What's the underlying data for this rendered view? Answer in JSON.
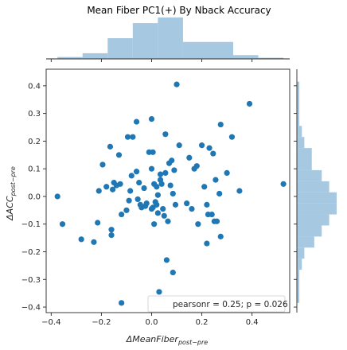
{
  "chart_data": {
    "type": "scatter",
    "title": "Mean Fiber PC1(+) By Nback Accuracy",
    "xlabel_main": "ΔMeanFiber",
    "xlabel_sub": "post−pre",
    "ylabel_main": "ΔACC",
    "ylabel_sub": "post−pre",
    "xlim": [
      -0.42,
      0.55
    ],
    "ylim": [
      -0.42,
      0.46
    ],
    "xticks": [
      -0.4,
      -0.2,
      0.0,
      0.2,
      0.4
    ],
    "yticks": [
      -0.4,
      -0.3,
      -0.2,
      -0.1,
      0.0,
      0.1,
      0.2,
      0.3,
      0.4
    ],
    "xtick_labels": [
      "−0.4",
      "−0.2",
      "0.0",
      "0.2",
      "0.4"
    ],
    "ytick_labels": [
      "−0.4",
      "−0.3",
      "−0.2",
      "−0.1",
      "0.0",
      "0.1",
      "0.2",
      "0.3",
      "0.4"
    ],
    "grid": false,
    "legend_text": "pearsonr = 0.25; p = 0.026",
    "legend_position": "lower-right",
    "point_color": "#1f77b4",
    "hist_color": "#a6c8e0",
    "points": [
      [
        -0.375,
        0.0
      ],
      [
        -0.355,
        -0.1
      ],
      [
        -0.28,
        -0.155
      ],
      [
        -0.23,
        -0.165
      ],
      [
        -0.215,
        -0.095
      ],
      [
        -0.21,
        0.02
      ],
      [
        -0.195,
        0.115
      ],
      [
        -0.18,
        0.035
      ],
      [
        -0.165,
        0.18
      ],
      [
        -0.16,
        -0.12
      ],
      [
        -0.16,
        -0.14
      ],
      [
        -0.155,
        0.025
      ],
      [
        -0.15,
        0.05
      ],
      [
        -0.14,
        0.04
      ],
      [
        -0.13,
        0.15
      ],
      [
        -0.125,
        0.045
      ],
      [
        -0.12,
        -0.065
      ],
      [
        -0.12,
        -0.385
      ],
      [
        -0.1,
        -0.05
      ],
      [
        -0.095,
        0.215
      ],
      [
        -0.09,
        -0.015
      ],
      [
        -0.085,
        0.02
      ],
      [
        -0.08,
        0.075
      ],
      [
        -0.075,
        0.215
      ],
      [
        -0.06,
        0.09
      ],
      [
        -0.06,
        0.27
      ],
      [
        -0.055,
        -0.01
      ],
      [
        -0.05,
        0.05
      ],
      [
        -0.045,
        -0.03
      ],
      [
        -0.04,
        -0.04
      ],
      [
        -0.03,
        0.03
      ],
      [
        -0.025,
        -0.035
      ],
      [
        -0.02,
        -0.025
      ],
      [
        -0.01,
        0.16
      ],
      [
        0.0,
        0.1
      ],
      [
        0.005,
        0.16
      ],
      [
        0.0,
        0.28
      ],
      [
        0.0,
        -0.045
      ],
      [
        0.005,
        -0.04
      ],
      [
        0.01,
        0.045
      ],
      [
        0.01,
        -0.1
      ],
      [
        0.015,
        -0.02
      ],
      [
        0.02,
        -0.03
      ],
      [
        0.02,
        0.035
      ],
      [
        0.025,
        0.005
      ],
      [
        0.025,
        -0.06
      ],
      [
        0.03,
        -0.345
      ],
      [
        0.035,
        0.06
      ],
      [
        0.035,
        0.08
      ],
      [
        0.04,
        0.045
      ],
      [
        0.045,
        -0.045
      ],
      [
        0.05,
        -0.07
      ],
      [
        0.055,
        0.225
      ],
      [
        0.055,
        0.085
      ],
      [
        0.06,
        -0.23
      ],
      [
        0.065,
        -0.09
      ],
      [
        0.07,
        0.12
      ],
      [
        0.075,
        0.04
      ],
      [
        0.08,
        0.13
      ],
      [
        0.085,
        -0.275
      ],
      [
        0.085,
        0.01
      ],
      [
        0.09,
        0.095
      ],
      [
        0.095,
        -0.03
      ],
      [
        0.1,
        0.405
      ],
      [
        0.11,
        0.185
      ],
      [
        0.14,
        -0.025
      ],
      [
        0.15,
        0.14
      ],
      [
        0.16,
        -0.045
      ],
      [
        0.17,
        0.1
      ],
      [
        0.18,
        0.11
      ],
      [
        0.185,
        -0.1
      ],
      [
        0.2,
        0.185
      ],
      [
        0.21,
        0.035
      ],
      [
        0.22,
        -0.03
      ],
      [
        0.22,
        -0.17
      ],
      [
        0.225,
        -0.065
      ],
      [
        0.23,
        0.175
      ],
      [
        0.24,
        -0.065
      ],
      [
        0.245,
        0.155
      ],
      [
        0.25,
        -0.09
      ],
      [
        0.255,
        0.06
      ],
      [
        0.26,
        -0.09
      ],
      [
        0.27,
        0.01
      ],
      [
        0.275,
        -0.145
      ],
      [
        0.275,
        0.26
      ],
      [
        0.3,
        0.085
      ],
      [
        0.32,
        0.215
      ],
      [
        0.35,
        0.02
      ],
      [
        0.39,
        0.335
      ],
      [
        0.525,
        0.045
      ]
    ],
    "x_hist": {
      "bin_edges": [
        -0.375,
        -0.275,
        -0.175,
        -0.075,
        0.025,
        0.125,
        0.225,
        0.325,
        0.425,
        0.525
      ],
      "counts": [
        1,
        3,
        11,
        19,
        22,
        9,
        9,
        2,
        0.6
      ]
    },
    "y_hist": {
      "bin_edges": [
        -0.385,
        -0.345,
        -0.305,
        -0.265,
        -0.225,
        -0.185,
        -0.145,
        -0.105,
        -0.065,
        -0.025,
        0.015,
        0.055,
        0.095,
        0.135,
        0.175,
        0.215,
        0.255,
        0.295,
        0.335,
        0.375,
        0.415
      ],
      "counts": [
        1,
        1,
        1,
        2,
        3,
        7,
        10,
        13,
        16,
        16,
        13,
        10,
        6,
        6,
        3,
        2,
        1,
        1,
        1,
        1
      ]
    }
  }
}
